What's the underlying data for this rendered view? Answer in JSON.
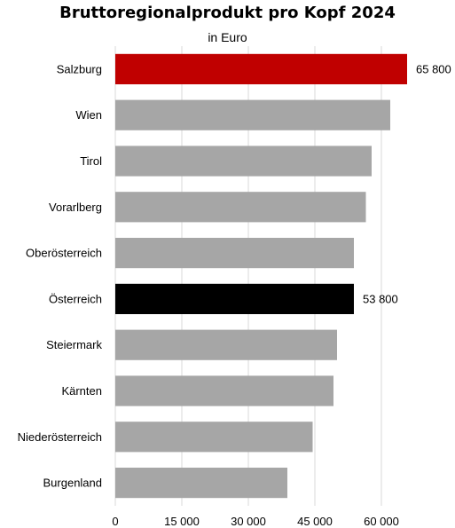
{
  "chart_data": {
    "type": "bar",
    "orientation": "horizontal",
    "title": "Bruttoregionalprodukt  pro Kopf 2024",
    "subtitle": "in Euro",
    "categories": [
      "Salzburg",
      "Wien",
      "Tirol",
      "Vorarlberg",
      "Oberösterreich",
      "Österreich",
      "Steiermark",
      "Kärnten",
      "Niederösterreich",
      "Burgenland"
    ],
    "values": [
      65800,
      62000,
      57800,
      56500,
      53800,
      53800,
      50000,
      49200,
      44500,
      38800
    ],
    "bar_colors": [
      "#c00000",
      "#a6a6a6",
      "#a6a6a6",
      "#a6a6a6",
      "#a6a6a6",
      "#000000",
      "#a6a6a6",
      "#a6a6a6",
      "#a6a6a6",
      "#a6a6a6"
    ],
    "data_labels": [
      {
        "category": "Salzburg",
        "text": "65 800"
      },
      {
        "category": "Österreich",
        "text": "53 800"
      }
    ],
    "xlim": [
      0,
      67000
    ],
    "x_ticks": [
      0,
      15000,
      30000,
      45000,
      60000
    ],
    "x_tick_labels": [
      "0",
      "15 000",
      "30 000",
      "45 000",
      "60 000"
    ],
    "grid": "vertical",
    "grid_color": "#d9d9d9",
    "legend": "none"
  }
}
